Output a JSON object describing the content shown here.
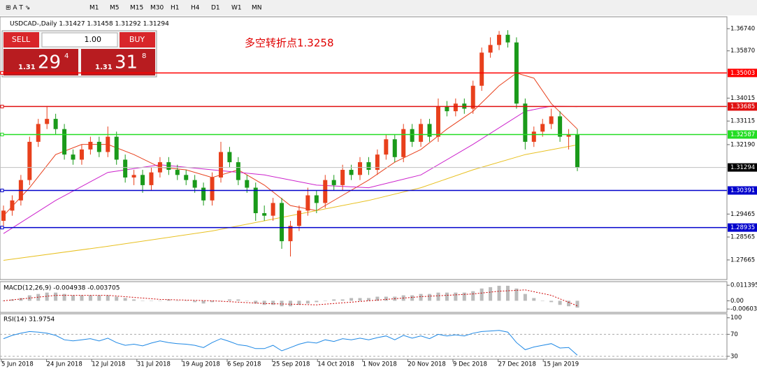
{
  "toolbar": {
    "timeframes": [
      "M1",
      "M5",
      "M15",
      "M30",
      "H1",
      "H4",
      "D1",
      "W1",
      "MN"
    ]
  },
  "trade_panel": {
    "sell": "SELL",
    "buy": "BUY",
    "lots": "1.00",
    "sell_price": {
      "prefix": "1.31",
      "big": "29",
      "small": "4"
    },
    "buy_price": {
      "prefix": "1.31",
      "big": "31",
      "small": "8"
    }
  },
  "chart_data": [
    {
      "type": "candlestick",
      "title": "USDCAD-,Daily  1.31427 1.31458 1.31292 1.31294",
      "annotation": "多空转折点1.3258",
      "up_color": "#e8401c",
      "down_color": "#1a9a1a",
      "open": [
        1.292,
        1.296,
        1.3,
        1.308,
        1.323,
        1.33,
        1.332,
        1.328,
        1.318,
        1.316,
        1.32,
        1.323,
        1.319,
        1.325,
        1.316,
        1.309,
        1.31,
        1.306,
        1.311,
        1.315,
        1.312,
        1.31,
        1.308,
        1.305,
        1.3,
        1.309,
        1.319,
        1.315,
        1.308,
        1.305,
        1.295,
        1.294,
        1.299,
        1.284,
        1.29,
        1.296,
        1.302,
        1.299,
        1.308,
        1.306,
        1.312,
        1.31,
        1.315,
        1.312,
        1.318,
        1.324,
        1.317,
        1.328,
        1.323,
        1.33,
        1.325,
        1.337,
        1.335,
        1.338,
        1.336,
        1.345,
        1.358,
        1.361,
        1.365,
        1.362,
        1.338,
        1.323,
        1.327,
        1.33,
        1.333,
        1.325,
        1.326
      ],
      "high": [
        1.298,
        1.302,
        1.31,
        1.325,
        1.332,
        1.337,
        1.334,
        1.33,
        1.32,
        1.322,
        1.325,
        1.325,
        1.329,
        1.327,
        1.318,
        1.312,
        1.312,
        1.313,
        1.317,
        1.317,
        1.314,
        1.312,
        1.31,
        1.307,
        1.311,
        1.323,
        1.321,
        1.317,
        1.31,
        1.307,
        1.298,
        1.301,
        1.301,
        1.292,
        1.298,
        1.305,
        1.304,
        1.31,
        1.31,
        1.314,
        1.314,
        1.317,
        1.317,
        1.32,
        1.326,
        1.326,
        1.33,
        1.33,
        1.332,
        1.332,
        1.34,
        1.339,
        1.34,
        1.34,
        1.347,
        1.36,
        1.364,
        1.3665,
        1.3668,
        1.364,
        1.34,
        1.329,
        1.332,
        1.336,
        1.335,
        1.328,
        1.328
      ],
      "low": [
        1.29,
        1.294,
        1.298,
        1.306,
        1.321,
        1.328,
        1.326,
        1.316,
        1.314,
        1.314,
        1.318,
        1.317,
        1.317,
        1.314,
        1.307,
        1.306,
        1.303,
        1.304,
        1.309,
        1.31,
        1.308,
        1.306,
        1.303,
        1.298,
        1.298,
        1.307,
        1.313,
        1.306,
        1.303,
        1.292,
        1.292,
        1.292,
        1.281,
        1.278,
        1.288,
        1.294,
        1.295,
        1.297,
        1.304,
        1.304,
        1.308,
        1.308,
        1.31,
        1.31,
        1.316,
        1.315,
        1.315,
        1.321,
        1.321,
        1.323,
        1.323,
        1.333,
        1.333,
        1.334,
        1.334,
        1.343,
        1.356,
        1.359,
        1.36,
        1.336,
        1.32,
        1.321,
        1.325,
        1.328,
        1.323,
        1.32,
        1.3115
      ],
      "close": [
        1.296,
        1.3,
        1.308,
        1.323,
        1.33,
        1.332,
        1.328,
        1.318,
        1.316,
        1.32,
        1.323,
        1.319,
        1.325,
        1.316,
        1.309,
        1.31,
        1.306,
        1.311,
        1.315,
        1.312,
        1.31,
        1.308,
        1.305,
        1.3,
        1.309,
        1.319,
        1.315,
        1.308,
        1.305,
        1.295,
        1.294,
        1.299,
        1.284,
        1.29,
        1.296,
        1.302,
        1.299,
        1.308,
        1.306,
        1.312,
        1.31,
        1.315,
        1.312,
        1.318,
        1.324,
        1.317,
        1.328,
        1.323,
        1.33,
        1.325,
        1.337,
        1.335,
        1.338,
        1.336,
        1.345,
        1.358,
        1.361,
        1.365,
        1.362,
        1.338,
        1.323,
        1.327,
        1.33,
        1.333,
        1.325,
        1.326,
        1.3129
      ],
      "ylim": [
        1.2695,
        1.3696
      ],
      "yticks": [
        {
          "value": 1.3674,
          "label": "1.36740"
        },
        {
          "value": 1.3587,
          "label": "1.35870"
        },
        {
          "value": 1.34015,
          "label": "1.34015"
        },
        {
          "value": 1.33115,
          "label": "1.33115"
        },
        {
          "value": 1.3219,
          "label": "1.32190"
        },
        {
          "value": 1.29465,
          "label": "1.29465"
        },
        {
          "value": 1.28565,
          "label": "1.28565"
        },
        {
          "value": 1.27665,
          "label": "1.27665"
        }
      ],
      "levels": [
        {
          "value": 1.35003,
          "color": "#ff0000"
        },
        {
          "value": 1.33685,
          "color": "#e01010"
        },
        {
          "value": 1.32587,
          "color": "#22dd22"
        },
        {
          "value": 1.30391,
          "color": "#0000cc"
        },
        {
          "value": 1.28935,
          "color": "#0000cc"
        }
      ],
      "current_price": 1.31294,
      "moving_averages": [
        {
          "color": "#e8401c",
          "x": [
            0,
            3,
            6,
            9,
            12,
            15,
            18,
            21,
            24,
            27,
            30,
            33,
            36,
            39,
            42,
            45,
            48,
            51,
            54,
            57,
            59,
            61,
            63,
            66
          ],
          "values": [
            1.294,
            1.305,
            1.318,
            1.322,
            1.322,
            1.318,
            1.313,
            1.312,
            1.309,
            1.312,
            1.306,
            1.298,
            1.296,
            1.302,
            1.308,
            1.315,
            1.32,
            1.328,
            1.335,
            1.345,
            1.35,
            1.348,
            1.338,
            1.328
          ]
        },
        {
          "color": "#cc22cc",
          "x": [
            0,
            6,
            12,
            18,
            24,
            30,
            36,
            42,
            48,
            54,
            60,
            63,
            66
          ],
          "values": [
            1.287,
            1.3,
            1.311,
            1.314,
            1.312,
            1.31,
            1.306,
            1.305,
            1.31,
            1.322,
            1.335,
            1.337,
            1.3368
          ]
        },
        {
          "color": "#e8c020",
          "x": [
            0,
            12,
            24,
            36,
            42,
            48,
            54,
            60,
            66
          ],
          "values": [
            1.2765,
            1.282,
            1.288,
            1.296,
            1.3,
            1.305,
            1.312,
            1.318,
            1.3218
          ]
        }
      ],
      "x_labels": [
        "5 Jun 2018",
        "24 Jun 2018",
        "12 Jul 2018",
        "31 Jul 2018",
        "19 Aug 2018",
        "6 Sep 2018",
        "25 Sep 2018",
        "14 Oct 2018",
        "1 Nov 2018",
        "20 Nov 2018",
        "9 Dec 2018",
        "27 Dec 2018",
        "15 Jan 2019"
      ]
    },
    {
      "type": "macd",
      "title": "MACD(12,26,9) -0.004938 -0.003705",
      "color": "#bbbbbb",
      "signal_color": "#cc0000",
      "values": [
        0.0,
        0.001,
        0.002,
        0.004,
        0.005,
        0.006,
        0.006,
        0.005,
        0.004,
        0.004,
        0.004,
        0.004,
        0.004,
        0.003,
        0.002,
        0.001,
        0.0,
        0.0,
        0.0,
        0.001,
        0.0,
        0.0,
        -0.001,
        -0.002,
        -0.001,
        0.0,
        0.001,
        0.001,
        0.0,
        -0.002,
        -0.003,
        -0.003,
        -0.004,
        -0.004,
        -0.003,
        -0.002,
        -0.001,
        0.0,
        0.001,
        0.001,
        0.002,
        0.002,
        0.002,
        0.003,
        0.003,
        0.003,
        0.004,
        0.004,
        0.005,
        0.005,
        0.006,
        0.006,
        0.006,
        0.006,
        0.007,
        0.009,
        0.01,
        0.011,
        0.011,
        0.009,
        0.005,
        0.002,
        0.0,
        -0.001,
        -0.003,
        -0.004,
        -0.005
      ],
      "signal": {
        "x": [
          0,
          6,
          12,
          18,
          24,
          30,
          36,
          42,
          48,
          54,
          57,
          60,
          63,
          66
        ],
        "values": [
          0.0,
          0.004,
          0.004,
          0.001,
          0.0,
          -0.002,
          -0.003,
          0.0,
          0.003,
          0.005,
          0.007,
          0.008,
          0.004,
          -0.0037
        ]
      },
      "ylim": [
        -0.008,
        0.013
      ],
      "yticks": [
        0.011395,
        {
          "value": 0,
          "label": "0.00"
        },
        -0.006033
      ]
    },
    {
      "type": "line",
      "title": "RSI(14) 31.9754",
      "color": "#1e88e5",
      "values": [
        62,
        68,
        72,
        75,
        74,
        72,
        68,
        60,
        58,
        60,
        62,
        58,
        63,
        55,
        50,
        52,
        49,
        54,
        58,
        55,
        53,
        52,
        50,
        46,
        55,
        62,
        57,
        51,
        49,
        44,
        44,
        50,
        40,
        46,
        52,
        56,
        54,
        60,
        57,
        62,
        60,
        63,
        60,
        64,
        67,
        60,
        68,
        63,
        67,
        62,
        70,
        67,
        69,
        67,
        72,
        75,
        76,
        77,
        74,
        55,
        42,
        47,
        50,
        53,
        45,
        46,
        32
      ],
      "ylim": [
        26,
        106
      ],
      "yticks": [
        100,
        70,
        30
      ]
    }
  ]
}
